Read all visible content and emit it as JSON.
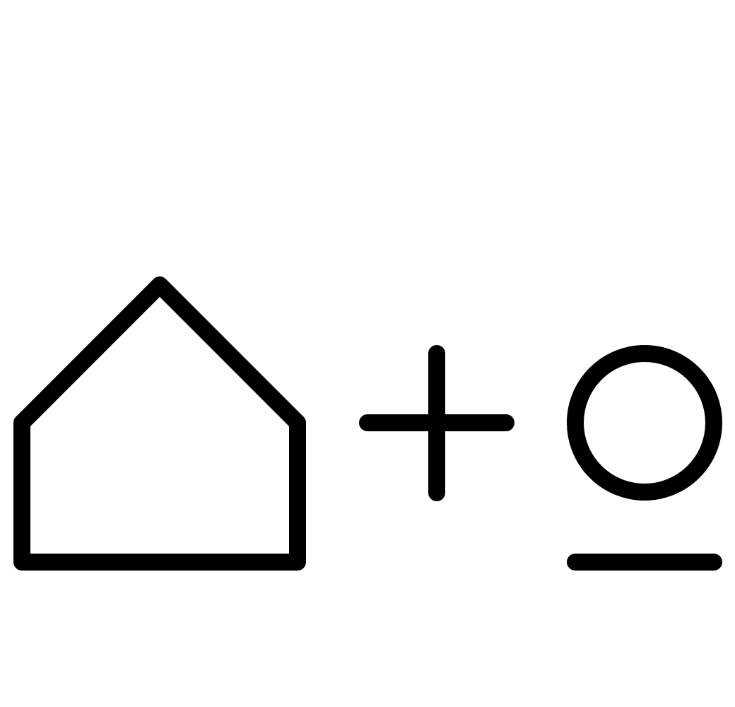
{
  "symbol": {
    "stroke_color": "#000000",
    "background_color": "#ffffff",
    "parts": [
      {
        "name": "house-icon"
      },
      {
        "name": "plus-icon"
      },
      {
        "name": "circle-icon"
      },
      {
        "name": "underline-icon"
      }
    ]
  }
}
